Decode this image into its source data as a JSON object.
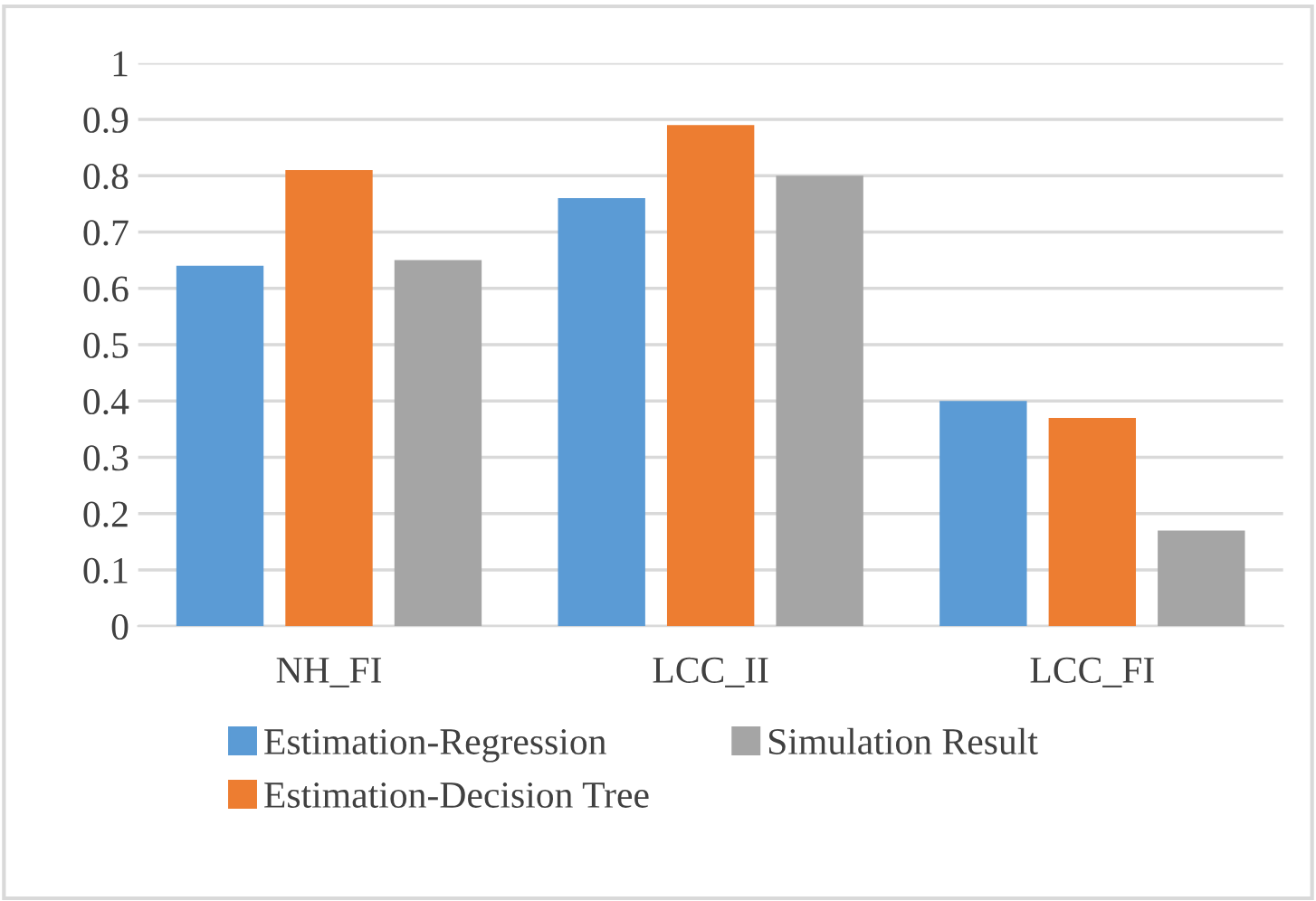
{
  "chart_data": {
    "type": "bar",
    "categories": [
      "NH_FI",
      "LCC_II",
      "LCC_FI"
    ],
    "series": [
      {
        "name": "Estimation-Regression",
        "color": "#5b9bd5",
        "values": [
          0.64,
          0.76,
          0.4
        ]
      },
      {
        "name": "Estimation-Decision Tree",
        "color": "#ed7d31",
        "values": [
          0.81,
          0.89,
          0.37
        ]
      },
      {
        "name": "Simulation Result",
        "color": "#a5a5a5",
        "values": [
          0.65,
          0.8,
          0.17
        ]
      }
    ],
    "ylim": [
      0,
      1
    ],
    "yticks": [
      0,
      0.1,
      0.2,
      0.3,
      0.4,
      0.5,
      0.6,
      0.7,
      0.8,
      0.9,
      1
    ],
    "grid": "y",
    "legend": "bottom"
  }
}
